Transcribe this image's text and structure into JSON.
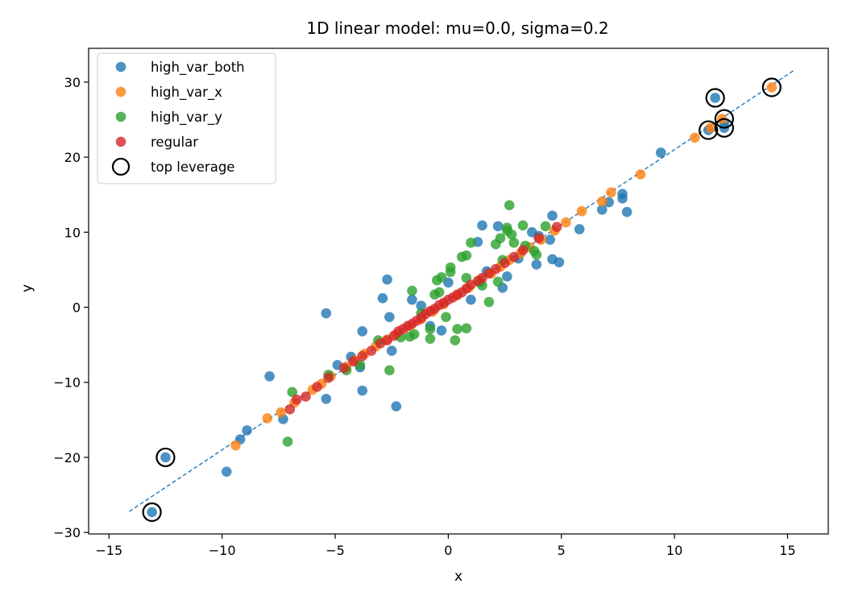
{
  "chart_data": {
    "type": "scatter",
    "title": "1D linear model: mu=0.0, sigma=0.2",
    "xlabel": "x",
    "ylabel": "y",
    "xlim": [
      -15.9,
      16.8
    ],
    "ylim": [
      -30.2,
      34.5
    ],
    "xticks": [
      -15,
      -10,
      -5,
      0,
      5,
      10,
      15
    ],
    "yticks": [
      -30,
      -20,
      -10,
      0,
      10,
      20,
      30
    ],
    "xtick_labels": [
      "−15",
      "−10",
      "−5",
      "0",
      "5",
      "10",
      "15"
    ],
    "ytick_labels": [
      "−30",
      "−20",
      "−10",
      "0",
      "10",
      "20",
      "30"
    ],
    "grid": false,
    "legend_position": "top-left",
    "fit_line": {
      "x": [
        -14.1,
        15.3
      ],
      "y": [
        -27.2,
        31.6
      ],
      "color": "#1f77b4",
      "style": "dashed"
    },
    "series": [
      {
        "name": "high_var_both",
        "color": "#1f77b4",
        "points": [
          [
            -13.1,
            -27.3
          ],
          [
            -12.5,
            -20.0
          ],
          [
            -9.8,
            -21.9
          ],
          [
            -9.2,
            -17.6
          ],
          [
            -8.9,
            -16.4
          ],
          [
            -7.9,
            -9.2
          ],
          [
            -7.3,
            -14.9
          ],
          [
            -5.4,
            -0.8
          ],
          [
            -5.4,
            -12.2
          ],
          [
            -4.9,
            -7.7
          ],
          [
            -4.3,
            -6.6
          ],
          [
            -3.9,
            -8.0
          ],
          [
            -3.8,
            -3.2
          ],
          [
            -3.8,
            -11.1
          ],
          [
            -2.9,
            1.2
          ],
          [
            -2.7,
            3.7
          ],
          [
            -2.6,
            -1.3
          ],
          [
            -2.5,
            -5.8
          ],
          [
            -2.3,
            -13.2
          ],
          [
            -1.6,
            1.0
          ],
          [
            -1.2,
            0.2
          ],
          [
            -0.8,
            -2.5
          ],
          [
            -0.3,
            -3.1
          ],
          [
            0.0,
            3.3
          ],
          [
            1.0,
            1.0
          ],
          [
            1.3,
            8.7
          ],
          [
            1.5,
            10.9
          ],
          [
            1.7,
            4.8
          ],
          [
            2.2,
            10.8
          ],
          [
            2.4,
            2.6
          ],
          [
            2.6,
            4.1
          ],
          [
            3.1,
            6.5
          ],
          [
            3.7,
            10.0
          ],
          [
            3.9,
            5.7
          ],
          [
            4.0,
            9.5
          ],
          [
            4.5,
            9.0
          ],
          [
            4.6,
            12.2
          ],
          [
            4.6,
            6.4
          ],
          [
            4.9,
            6.0
          ],
          [
            5.8,
            10.4
          ],
          [
            6.8,
            13.0
          ],
          [
            7.1,
            14.0
          ],
          [
            7.7,
            14.5
          ],
          [
            7.7,
            15.1
          ],
          [
            7.9,
            12.7
          ],
          [
            9.4,
            20.6
          ],
          [
            11.5,
            23.6
          ],
          [
            11.8,
            27.9
          ],
          [
            12.2,
            23.9
          ],
          [
            12.2,
            24.6
          ]
        ]
      },
      {
        "name": "high_var_x",
        "color": "#ff7f0e",
        "points": [
          [
            -9.4,
            -18.4
          ],
          [
            -8.0,
            -14.8
          ],
          [
            -7.4,
            -14.0
          ],
          [
            -6.8,
            -12.7
          ],
          [
            -6.0,
            -11.0
          ],
          [
            -5.6,
            -10.2
          ],
          [
            -5.2,
            -9.2
          ],
          [
            -4.5,
            -7.9
          ],
          [
            -4.1,
            -7.1
          ],
          [
            -3.7,
            -6.2
          ],
          [
            -3.2,
            -5.2
          ],
          [
            -2.7,
            -4.3
          ],
          [
            -2.3,
            -3.6
          ],
          [
            -1.7,
            -2.5
          ],
          [
            -1.2,
            -1.6
          ],
          [
            -0.7,
            -0.6
          ],
          [
            -0.2,
            0.4
          ],
          [
            0.4,
            1.6
          ],
          [
            0.9,
            2.6
          ],
          [
            1.4,
            3.6
          ],
          [
            1.9,
            4.5
          ],
          [
            2.3,
            5.4
          ],
          [
            2.7,
            6.3
          ],
          [
            3.2,
            7.2
          ],
          [
            3.6,
            8.0
          ],
          [
            4.1,
            9.0
          ],
          [
            4.7,
            10.2
          ],
          [
            5.2,
            11.3
          ],
          [
            5.9,
            12.8
          ],
          [
            6.8,
            14.1
          ],
          [
            7.2,
            15.3
          ],
          [
            8.5,
            17.7
          ],
          [
            10.9,
            22.6
          ],
          [
            11.6,
            23.9
          ],
          [
            12.1,
            25.1
          ],
          [
            14.3,
            29.3
          ]
        ]
      },
      {
        "name": "high_var_y",
        "color": "#2ca02c",
        "points": [
          [
            -7.1,
            -17.9
          ],
          [
            -6.9,
            -11.3
          ],
          [
            -5.3,
            -9.0
          ],
          [
            -4.5,
            -8.4
          ],
          [
            -3.9,
            -7.7
          ],
          [
            -3.1,
            -4.4
          ],
          [
            -2.6,
            -8.4
          ],
          [
            -2.1,
            -4.0
          ],
          [
            -1.7,
            -3.9
          ],
          [
            -1.6,
            2.2
          ],
          [
            -1.5,
            -3.6
          ],
          [
            -1.2,
            -0.8
          ],
          [
            -0.8,
            -2.9
          ],
          [
            -0.8,
            -4.2
          ],
          [
            -0.6,
            1.7
          ],
          [
            -0.5,
            3.6
          ],
          [
            -0.4,
            2.0
          ],
          [
            -0.3,
            4.0
          ],
          [
            -0.1,
            -1.3
          ],
          [
            0.1,
            4.7
          ],
          [
            0.1,
            5.3
          ],
          [
            0.3,
            -4.4
          ],
          [
            0.4,
            -2.9
          ],
          [
            0.6,
            6.7
          ],
          [
            0.8,
            6.9
          ],
          [
            0.8,
            -2.8
          ],
          [
            0.8,
            3.9
          ],
          [
            1.0,
            8.6
          ],
          [
            1.4,
            3.3
          ],
          [
            1.5,
            2.9
          ],
          [
            1.8,
            0.7
          ],
          [
            2.1,
            8.4
          ],
          [
            2.2,
            3.4
          ],
          [
            2.3,
            9.2
          ],
          [
            2.4,
            6.3
          ],
          [
            2.6,
            10.2
          ],
          [
            2.6,
            10.6
          ],
          [
            2.7,
            13.6
          ],
          [
            2.8,
            9.7
          ],
          [
            2.9,
            8.6
          ],
          [
            3.3,
            10.9
          ],
          [
            3.4,
            8.2
          ],
          [
            3.8,
            7.5
          ],
          [
            3.9,
            7.0
          ],
          [
            4.3,
            10.8
          ]
        ]
      },
      {
        "name": "regular",
        "color": "#d62728",
        "points": [
          [
            -7.0,
            -13.6
          ],
          [
            -6.7,
            -12.3
          ],
          [
            -6.3,
            -11.9
          ],
          [
            -5.8,
            -10.6
          ],
          [
            -5.3,
            -9.4
          ],
          [
            -4.6,
            -8.1
          ],
          [
            -4.2,
            -7.2
          ],
          [
            -3.8,
            -6.5
          ],
          [
            -3.4,
            -5.8
          ],
          [
            -3.0,
            -4.8
          ],
          [
            -2.7,
            -4.4
          ],
          [
            -2.4,
            -3.8
          ],
          [
            -2.2,
            -3.2
          ],
          [
            -2.0,
            -2.9
          ],
          [
            -1.8,
            -2.5
          ],
          [
            -1.6,
            -2.2
          ],
          [
            -1.4,
            -1.8
          ],
          [
            -1.2,
            -1.4
          ],
          [
            -1.0,
            -0.9
          ],
          [
            -0.8,
            -0.5
          ],
          [
            -0.6,
            -0.2
          ],
          [
            -0.4,
            0.3
          ],
          [
            -0.2,
            0.6
          ],
          [
            0.0,
            1.0
          ],
          [
            0.2,
            1.3
          ],
          [
            0.4,
            1.7
          ],
          [
            0.6,
            2.0
          ],
          [
            0.8,
            2.5
          ],
          [
            1.0,
            3.0
          ],
          [
            1.3,
            3.5
          ],
          [
            1.5,
            3.9
          ],
          [
            1.8,
            4.5
          ],
          [
            2.1,
            5.1
          ],
          [
            2.5,
            5.9
          ],
          [
            2.9,
            6.7
          ],
          [
            3.3,
            7.6
          ],
          [
            4.0,
            9.2
          ],
          [
            4.8,
            10.7
          ]
        ]
      },
      {
        "name": "top leverage",
        "marker": "hollow-circle",
        "color": "#000000",
        "points": [
          [
            -13.1,
            -27.3
          ],
          [
            -12.5,
            -20.0
          ],
          [
            11.5,
            23.6
          ],
          [
            11.8,
            27.9
          ],
          [
            12.2,
            23.9
          ],
          [
            12.2,
            25.1
          ],
          [
            14.3,
            29.3
          ]
        ]
      }
    ]
  }
}
